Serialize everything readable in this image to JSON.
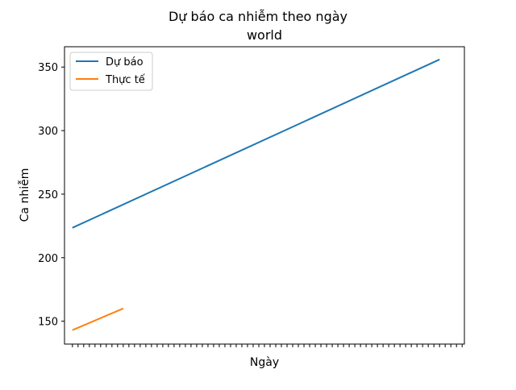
{
  "chart_data": {
    "type": "line",
    "title": "Dự báo ca nhiễm theo ngày",
    "subtitle": "world",
    "xlabel": "Ngày",
    "ylabel": "Ca nhiễm",
    "x_tick_count": 70,
    "x_tick_labels_visible": false,
    "xlim": [
      -1.4,
      69.4
    ],
    "ylim": [
      132,
      366
    ],
    "yticks": [
      150,
      200,
      250,
      300,
      350
    ],
    "grid": false,
    "legend_position": "top-left",
    "series": [
      {
        "name": "Dự báo",
        "color": "#1f77b4",
        "x": [
          0,
          65
        ],
        "y": [
          223.5,
          356
        ]
      },
      {
        "name": "Thực tế",
        "color": "#ff7f0e",
        "x": [
          0,
          9
        ],
        "y": [
          143,
          160
        ]
      }
    ]
  }
}
